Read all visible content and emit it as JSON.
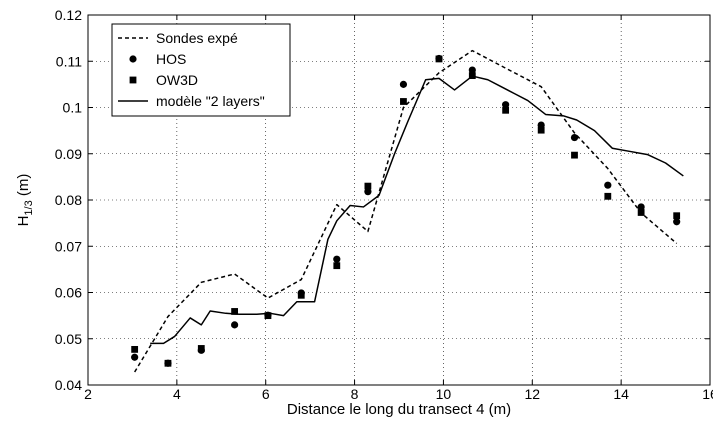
{
  "chart_data": {
    "type": "line",
    "title": "",
    "xlabel": "Distance le long du transect 4 (m)",
    "ylabel_main": "H",
    "ylabel_sub": "1/3",
    "ylabel_unit": " (m)",
    "xlim": [
      2,
      16
    ],
    "ylim": [
      0.04,
      0.12
    ],
    "xticks": [
      2,
      4,
      6,
      8,
      10,
      12,
      14,
      16
    ],
    "xtick_labels": [
      "2",
      "4",
      "6",
      "8",
      "10",
      "12",
      "14",
      "16"
    ],
    "yticks": [
      0.04,
      0.05,
      0.06,
      0.07,
      0.08,
      0.09,
      0.1,
      0.11,
      0.12
    ],
    "ytick_labels": [
      "0.04",
      "0.05",
      "0.06",
      "0.07",
      "0.08",
      "0.09",
      "0.1",
      "0.11",
      "0.12"
    ],
    "grid": true,
    "legend_position": "top-left",
    "series": [
      {
        "name": "Sondes expé",
        "style": "dashed",
        "marker": "none",
        "color": "#000000",
        "x": [
          3.05,
          3.8,
          4.55,
          5.3,
          6.05,
          6.8,
          7.6,
          8.3,
          9.1,
          9.9,
          10.65,
          11.4,
          12.2,
          12.95,
          13.7,
          14.45,
          15.25
        ],
        "y": [
          0.0428,
          0.0548,
          0.0622,
          0.064,
          0.0588,
          0.0628,
          0.079,
          0.0732,
          0.1,
          0.1075,
          0.1123,
          0.1085,
          0.1045,
          0.0945,
          0.0868,
          0.0772,
          0.0706
        ]
      },
      {
        "name": "HOS",
        "style": "none",
        "marker": "circle",
        "color": "#000000",
        "x": [
          3.05,
          3.8,
          4.55,
          5.3,
          6.05,
          6.8,
          7.6,
          8.3,
          9.1,
          9.9,
          10.65,
          11.4,
          12.2,
          12.95,
          13.7,
          14.45,
          15.25
        ],
        "y": [
          0.046,
          0.0447,
          0.0475,
          0.053,
          0.0551,
          0.0599,
          0.0672,
          0.0818,
          0.105,
          0.1106,
          0.1081,
          0.1006,
          0.0962,
          0.0935,
          0.0832,
          0.0785,
          0.0753
        ]
      },
      {
        "name": "OW3D",
        "style": "none",
        "marker": "square",
        "color": "#000000",
        "x": [
          3.05,
          3.8,
          4.55,
          5.3,
          6.05,
          6.8,
          7.6,
          8.3,
          9.1,
          9.9,
          10.65,
          11.4,
          12.2,
          12.95,
          13.7,
          14.45,
          15.25
        ],
        "y": [
          0.0477,
          0.0447,
          0.0479,
          0.0559,
          0.055,
          0.0594,
          0.0658,
          0.083,
          0.1013,
          0.1105,
          0.1069,
          0.0994,
          0.0951,
          0.0897,
          0.0808,
          0.0773,
          0.0766
        ]
      },
      {
        "name": "modèle \"2 layers\"",
        "style": "solid",
        "marker": "none",
        "color": "#000000",
        "x": [
          3.4,
          3.7,
          3.95,
          4.3,
          4.55,
          4.75,
          5.1,
          5.4,
          5.8,
          6.1,
          6.4,
          6.7,
          7.1,
          7.4,
          7.6,
          7.9,
          8.2,
          8.55,
          8.9,
          9.2,
          9.6,
          9.9,
          10.25,
          10.65,
          11.0,
          11.3,
          11.6,
          11.9,
          12.3,
          12.7,
          13.0,
          13.4,
          13.8,
          14.2,
          14.6,
          15.0,
          15.4
        ],
        "y": [
          0.049,
          0.049,
          0.0505,
          0.0545,
          0.053,
          0.056,
          0.0555,
          0.0553,
          0.0553,
          0.0555,
          0.055,
          0.058,
          0.058,
          0.0715,
          0.0755,
          0.0788,
          0.0785,
          0.081,
          0.09,
          0.097,
          0.106,
          0.1063,
          0.1038,
          0.1068,
          0.106,
          0.1045,
          0.103,
          0.1015,
          0.0985,
          0.0982,
          0.0973,
          0.095,
          0.0912,
          0.0905,
          0.0898,
          0.088,
          0.0852
        ]
      }
    ]
  }
}
